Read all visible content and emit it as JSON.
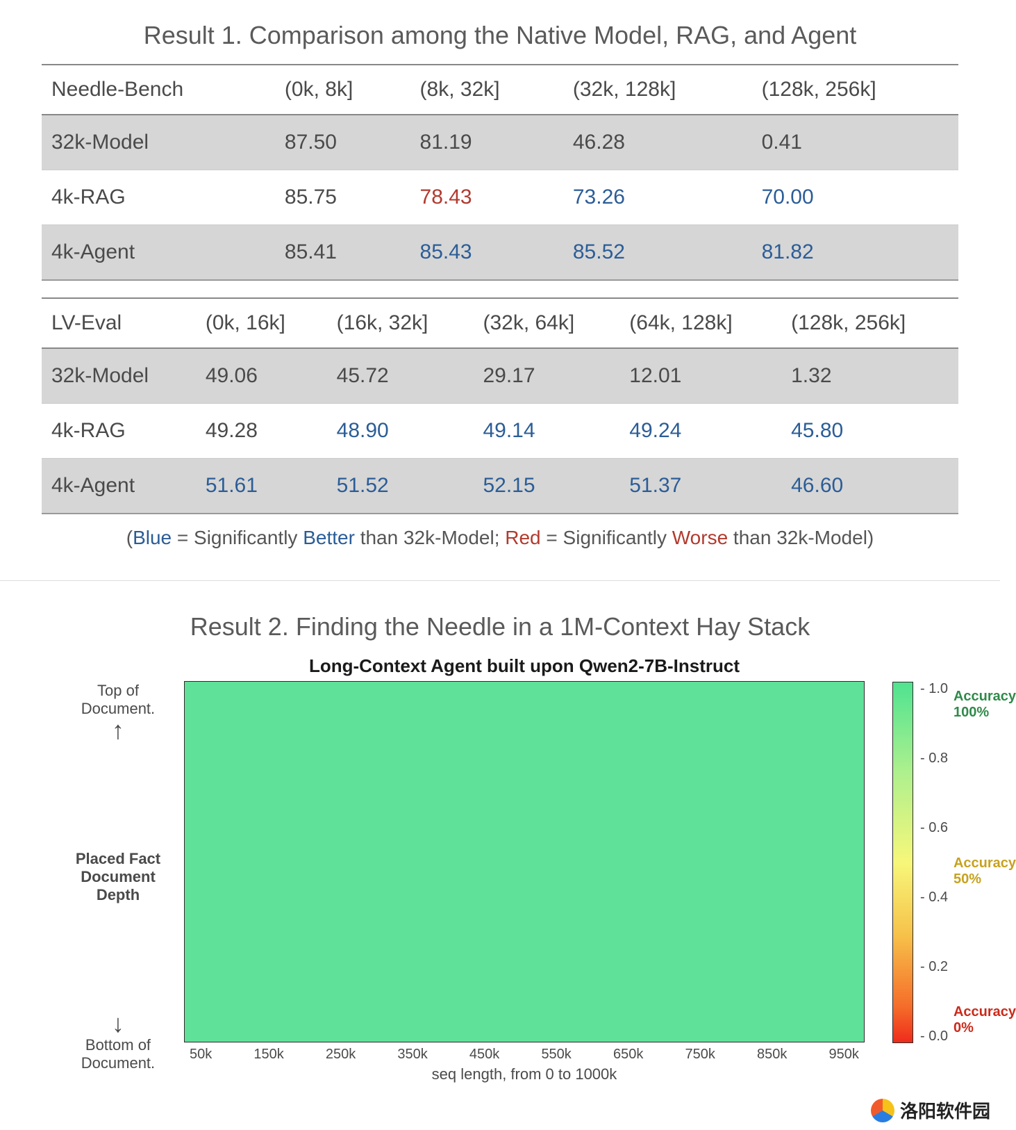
{
  "colors": {
    "text": "#4a4a4a",
    "title": "#5a5a5a",
    "row_shade": "#d6d6d6",
    "blue": "#2b5d97",
    "red": "#b23a2e",
    "heatmap_fill": "#5fe19a",
    "gradient_stops": [
      "#4fe390",
      "#aef08e",
      "#f7f77a",
      "#f7c24a",
      "#f56d2a",
      "#ef2b1c"
    ]
  },
  "result1": {
    "title": "Result 1. Comparison among the Native Model, RAG, and Agent",
    "table_a": {
      "columns": [
        "Needle-Bench",
        "(0k, 8k]",
        "(8k, 32k]",
        "(32k, 128k]",
        "(128k, 256k]"
      ],
      "rows": [
        {
          "shade": true,
          "label": "32k-Model",
          "cells": [
            {
              "v": "87.50"
            },
            {
              "v": "81.19"
            },
            {
              "v": "46.28"
            },
            {
              "v": "0.41"
            }
          ]
        },
        {
          "shade": false,
          "label": "4k-RAG",
          "cells": [
            {
              "v": "85.75"
            },
            {
              "v": "78.43",
              "c": "red"
            },
            {
              "v": "73.26",
              "c": "blue"
            },
            {
              "v": "70.00",
              "c": "blue"
            }
          ]
        },
        {
          "shade": true,
          "label": "4k-Agent",
          "cells": [
            {
              "v": "85.41"
            },
            {
              "v": "85.43",
              "c": "blue"
            },
            {
              "v": "85.52",
              "c": "blue"
            },
            {
              "v": "81.82",
              "c": "blue"
            }
          ]
        }
      ]
    },
    "table_b": {
      "columns": [
        "LV-Eval",
        "(0k, 16k]",
        "(16k, 32k]",
        "(32k, 64k]",
        "(64k, 128k]",
        "(128k, 256k]"
      ],
      "rows": [
        {
          "shade": true,
          "label": "32k-Model",
          "cells": [
            {
              "v": "49.06"
            },
            {
              "v": "45.72"
            },
            {
              "v": "29.17"
            },
            {
              "v": "12.01"
            },
            {
              "v": "1.32"
            }
          ]
        },
        {
          "shade": false,
          "label": "4k-RAG",
          "cells": [
            {
              "v": "49.28"
            },
            {
              "v": "48.90",
              "c": "blue"
            },
            {
              "v": "49.14",
              "c": "blue"
            },
            {
              "v": "49.24",
              "c": "blue"
            },
            {
              "v": "45.80",
              "c": "blue"
            }
          ]
        },
        {
          "shade": true,
          "label": "4k-Agent",
          "cells": [
            {
              "v": "51.61",
              "c": "blue"
            },
            {
              "v": "51.52",
              "c": "blue"
            },
            {
              "v": "52.15",
              "c": "blue"
            },
            {
              "v": "51.37",
              "c": "blue"
            },
            {
              "v": "46.60",
              "c": "blue"
            }
          ]
        }
      ]
    },
    "legend": {
      "open": "(",
      "blue_word": "Blue",
      "blue_rest": " = Significantly ",
      "better": "Better",
      "mid": " than 32k-Model; ",
      "red_word": "Red",
      "red_rest": " = Significantly ",
      "worse": "Worse",
      "end": " than 32k-Model)"
    }
  },
  "result2": {
    "title": "Result 2. Finding the Needle in a 1M-Context Hay Stack",
    "chart": {
      "type": "heatmap",
      "plot_title": "Long-Context Agent built upon Qwen2-7B-Instruct",
      "y_top": "Top of\nDocument.",
      "y_mid": "Placed Fact\nDocument\nDepth",
      "y_bot": "Bottom of\nDocument.",
      "uniform_value": 1.0,
      "x_ticks": [
        "50k",
        "150k",
        "250k",
        "350k",
        "450k",
        "550k",
        "650k",
        "750k",
        "850k",
        "950k"
      ],
      "x_label": "seq length, from 0 to 1000k",
      "colorbar": {
        "ticks": [
          "1.0",
          "0.8",
          "0.6",
          "0.4",
          "0.2",
          "0.0"
        ],
        "ann_100": "Accuracy\n100%",
        "ann_50": "Accuracy\n50%",
        "ann_0": "Accuracy\n0%"
      }
    }
  },
  "watermark": "洛阳软件园"
}
